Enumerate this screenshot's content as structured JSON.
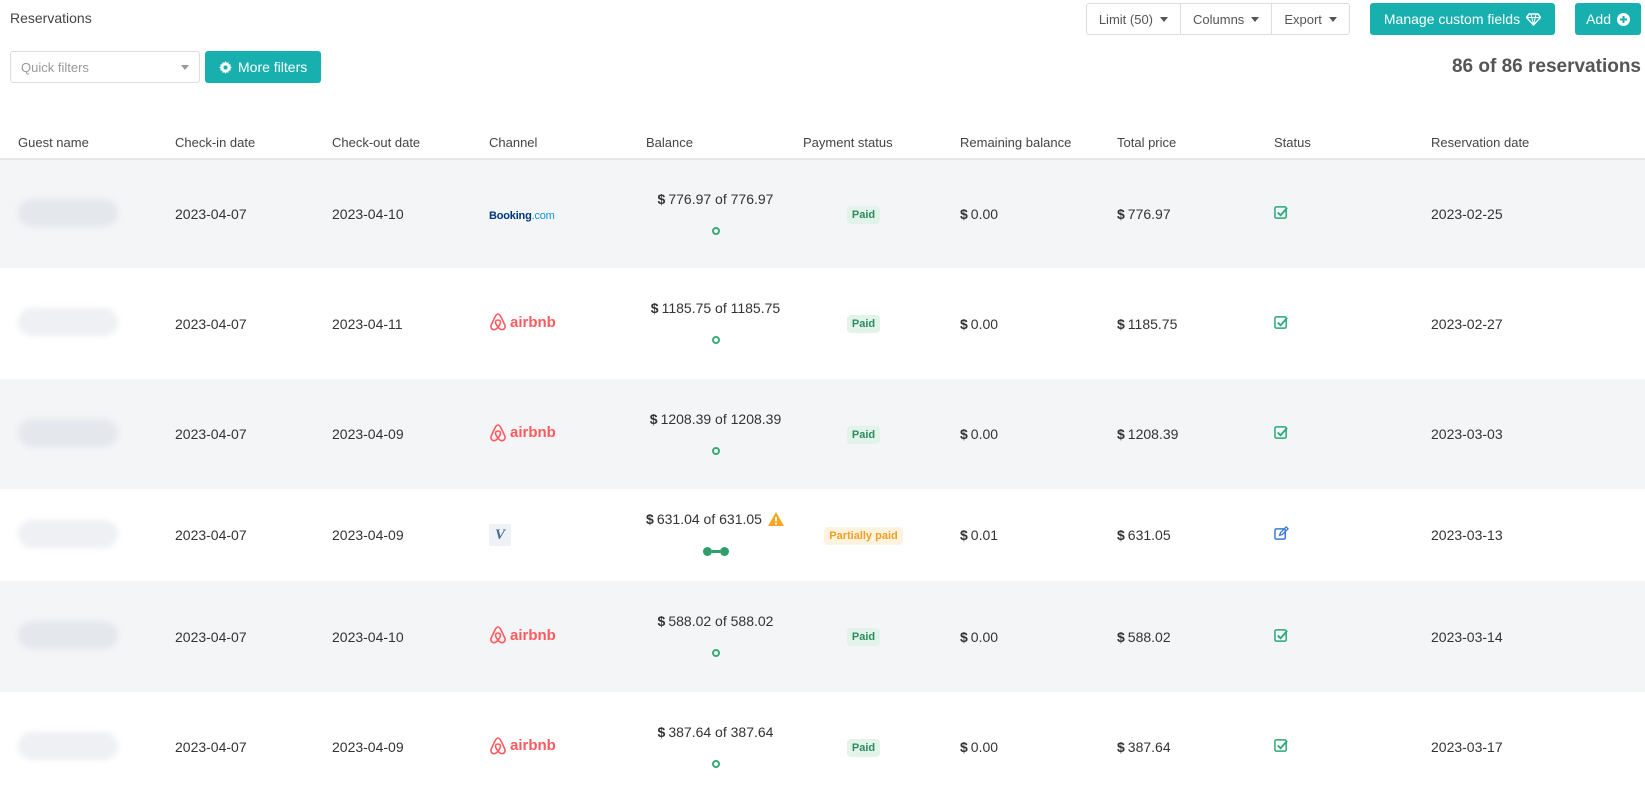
{
  "page": {
    "title": "Reservations"
  },
  "toolbar": {
    "limit_label": "Limit (50)",
    "columns_label": "Columns",
    "export_label": "Export",
    "manage_custom_fields_label": "Manage custom fields",
    "add_label": "Add"
  },
  "filters": {
    "quick_filters_placeholder": "Quick filters",
    "more_filters_label": "More filters"
  },
  "summary": {
    "count_text": "86 of 86 reservations"
  },
  "colors": {
    "accent": "#17b0ae",
    "paid_green": "#2e8b5c",
    "partial_orange": "#f0a020",
    "airbnb_red": "#ff5a5f"
  },
  "table": {
    "columns": [
      "Guest name",
      "Check-in date",
      "Check-out date",
      "Channel",
      "Balance",
      "Payment status",
      "Remaining balance",
      "Total price",
      "Status",
      "Reservation date"
    ],
    "rows": [
      {
        "check_in": "2023-04-07",
        "check_out": "2023-04-10",
        "channel": "booking",
        "currency": "$",
        "balance": "776.97 of 776.97",
        "progress": 1.0,
        "warning": false,
        "payment_status": "Paid",
        "remaining": "0.00",
        "total": "776.97",
        "status_icon": "check-square-icon",
        "reservation_date": "2023-02-25"
      },
      {
        "check_in": "2023-04-07",
        "check_out": "2023-04-11",
        "channel": "airbnb",
        "currency": "$",
        "balance": "1185.75 of 1185.75",
        "progress": 1.0,
        "warning": false,
        "payment_status": "Paid",
        "remaining": "0.00",
        "total": "1185.75",
        "status_icon": "check-square-icon",
        "reservation_date": "2023-02-27"
      },
      {
        "check_in": "2023-04-07",
        "check_out": "2023-04-09",
        "channel": "airbnb",
        "currency": "$",
        "balance": "1208.39 of 1208.39",
        "progress": 1.0,
        "warning": false,
        "payment_status": "Paid",
        "remaining": "0.00",
        "total": "1208.39",
        "status_icon": "check-square-icon",
        "reservation_date": "2023-03-03"
      },
      {
        "check_in": "2023-04-07",
        "check_out": "2023-04-09",
        "channel": "vrbo",
        "currency": "$",
        "balance": "631.04 of 631.05",
        "progress": 0.99,
        "warning": true,
        "payment_status": "Partially paid",
        "remaining": "0.01",
        "total": "631.05",
        "status_icon": "edit-icon",
        "reservation_date": "2023-03-13"
      },
      {
        "check_in": "2023-04-07",
        "check_out": "2023-04-10",
        "channel": "airbnb",
        "currency": "$",
        "balance": "588.02 of 588.02",
        "progress": 1.0,
        "warning": false,
        "payment_status": "Paid",
        "remaining": "0.00",
        "total": "588.02",
        "status_icon": "check-square-icon",
        "reservation_date": "2023-03-14"
      },
      {
        "check_in": "2023-04-07",
        "check_out": "2023-04-09",
        "channel": "airbnb",
        "currency": "$",
        "balance": "387.64 of 387.64",
        "progress": 1.0,
        "warning": false,
        "payment_status": "Paid",
        "remaining": "0.00",
        "total": "387.64",
        "status_icon": "check-square-icon",
        "reservation_date": "2023-03-17"
      }
    ]
  },
  "channel_logos": {
    "booking_main": "Booking",
    "booking_suffix": ".com",
    "airbnb": "airbnb",
    "vrbo": "V"
  }
}
